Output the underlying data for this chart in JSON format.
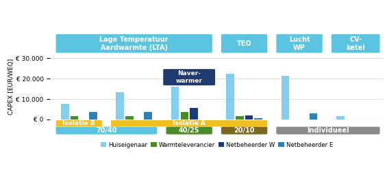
{
  "ylabel": "CAPEX [EUR/WEQ]",
  "ylim": [
    0,
    32000
  ],
  "yticks": [
    0,
    10000,
    20000,
    30000
  ],
  "ytick_labels": [
    "€ 0",
    "€ 10.000",
    "€ 20.000",
    "€ 30.000"
  ],
  "groups": [
    {
      "label": "70/40-B",
      "bars": [
        7800,
        1800,
        0,
        3800
      ]
    },
    {
      "label": "70/40-A",
      "bars": [
        13500,
        1700,
        0,
        3700
      ]
    },
    {
      "label": "40/25",
      "bars": [
        16000,
        3700,
        5700,
        0
      ]
    },
    {
      "label": "TEO",
      "bars": [
        22500,
        1600,
        2000,
        800
      ]
    },
    {
      "label": "LuchtWP",
      "bars": [
        21500,
        0,
        0,
        3100
      ]
    },
    {
      "label": "CV",
      "bars": [
        1800,
        0,
        0,
        0
      ]
    }
  ],
  "bar_colors": [
    "#87CEEB",
    "#4a8c2a",
    "#1a3a7a",
    "#2e80b5"
  ],
  "legend_labels": [
    "Huiseigenaar",
    "Warmteleverancier",
    "Netbeheerder W",
    "Netbeheerder E"
  ],
  "legend_colors": [
    "#87CEEB",
    "#4a8c2a",
    "#1a3a7a",
    "#2e80b5"
  ],
  "background_color": "white",
  "grid_color": "#dddddd",
  "header_color": "#5bc4e0",
  "header_text_color": "white",
  "naver_color": "#1f3a6e",
  "isolatie_color": "#f0c020",
  "c7040_color": "#5bc4e0",
  "c4025_color": "#4a8c2a",
  "c2010_color": "#7a6820",
  "individ_color": "#8a8a8a"
}
